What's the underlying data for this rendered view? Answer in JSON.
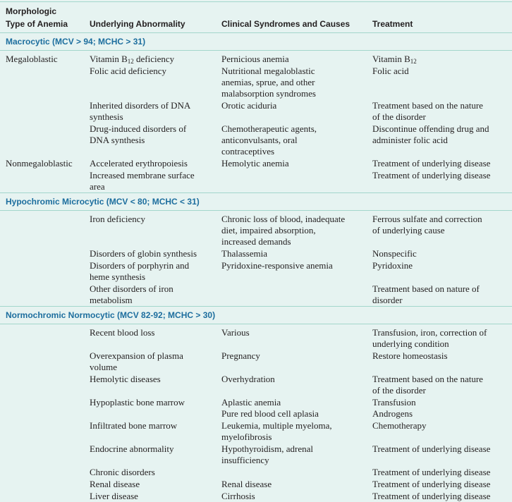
{
  "headers": {
    "type": "Morphologic\nType of Anemia",
    "abnormality": "Underlying Abnormality",
    "syndromes": "Clinical Syndromes and Causes",
    "treatment": "Treatment"
  },
  "sections": [
    {
      "title": "Macrocytic (MCV > 94; MCHC > 31)",
      "rows": [
        {
          "type": "Megaloblastic",
          "abn_pre": "Vitamin B",
          "abn_sub": "12",
          "abn_post": " deficiency",
          "syn": "Pernicious anemia",
          "tr_pre": "Vitamin B",
          "tr_sub": "12",
          "tr_post": ""
        },
        {
          "type": "",
          "abn": "Folic acid deficiency",
          "syn": "Nutritional megaloblastic\nanemias, sprue, and other\nmalabsorption syndromes",
          "tr": "Folic acid"
        },
        {
          "type": "",
          "abn": "Inherited disorders of DNA\nsynthesis",
          "syn": "Orotic aciduria",
          "tr": "Treatment based on the nature\nof the disorder"
        },
        {
          "type": "",
          "abn": "Drug-induced disorders of\nDNA synthesis",
          "syn": "Chemotherapeutic agents,\nanticonvulsants, oral\ncontraceptives",
          "tr": "Discontinue offending drug and\nadminister folic acid"
        },
        {
          "type": "Nonmegaloblastic",
          "abn": "Accelerated erythropoiesis",
          "syn": "Hemolytic anemia",
          "tr": "Treatment of underlying disease"
        },
        {
          "type": "",
          "abn": "Increased membrane surface\narea",
          "syn": "",
          "tr": "Treatment of underlying disease"
        }
      ]
    },
    {
      "title": "Hypochromic Microcytic (MCV < 80; MCHC < 31)",
      "rows": [
        {
          "type": "",
          "abn": "Iron deficiency",
          "syn": "Chronic loss of blood, inadequate\ndiet, impaired absorption,\nincreased demands",
          "tr": "Ferrous sulfate and correction\nof underlying cause"
        },
        {
          "type": "",
          "abn": "Disorders of globin synthesis",
          "syn": "Thalassemia",
          "tr": "Nonspecific"
        },
        {
          "type": "",
          "abn": "Disorders of porphyrin and\nheme synthesis",
          "syn": "Pyridoxine-responsive anemia",
          "tr": "Pyridoxine"
        },
        {
          "type": "",
          "abn": "Other disorders of iron\nmetabolism",
          "syn": "",
          "tr": "Treatment based on nature of\ndisorder"
        }
      ]
    },
    {
      "title": "Normochromic Normocytic (MCV 82-92; MCHC > 30)",
      "rows": [
        {
          "type": "",
          "abn": "Recent blood loss",
          "syn": "Various",
          "tr": "Transfusion, iron, correction of\nunderlying condition"
        },
        {
          "type": "",
          "abn": "Overexpansion of plasma\nvolume",
          "syn": "Pregnancy",
          "tr": "Restore homeostasis"
        },
        {
          "type": "",
          "abn": "Hemolytic diseases",
          "syn": "Overhydration",
          "tr": "Treatment based on the nature\nof the disorder"
        },
        {
          "type": "",
          "abn": "Hypoplastic bone marrow",
          "syn": "Aplastic anemia\nPure red blood cell aplasia",
          "tr": "Transfusion\nAndrogens"
        },
        {
          "type": "",
          "abn": "Infiltrated bone marrow",
          "syn": "Leukemia, multiple myeloma,\nmyelofibrosis",
          "tr": "Chemotherapy"
        },
        {
          "type": "",
          "abn": "Endocrine abnormality",
          "syn": "Hypothyroidism, adrenal\ninsufficiency",
          "tr": "Treatment of underlying disease"
        },
        {
          "type": "",
          "abn": "Chronic disorders",
          "syn": "",
          "tr": "Treatment of underlying disease"
        },
        {
          "type": "",
          "abn": "Renal disease",
          "syn": "Renal disease",
          "tr": "Treatment of underlying disease"
        },
        {
          "type": "",
          "abn": "Liver disease",
          "syn": "Cirrhosis",
          "tr": "Treatment of underlying disease"
        }
      ]
    }
  ]
}
